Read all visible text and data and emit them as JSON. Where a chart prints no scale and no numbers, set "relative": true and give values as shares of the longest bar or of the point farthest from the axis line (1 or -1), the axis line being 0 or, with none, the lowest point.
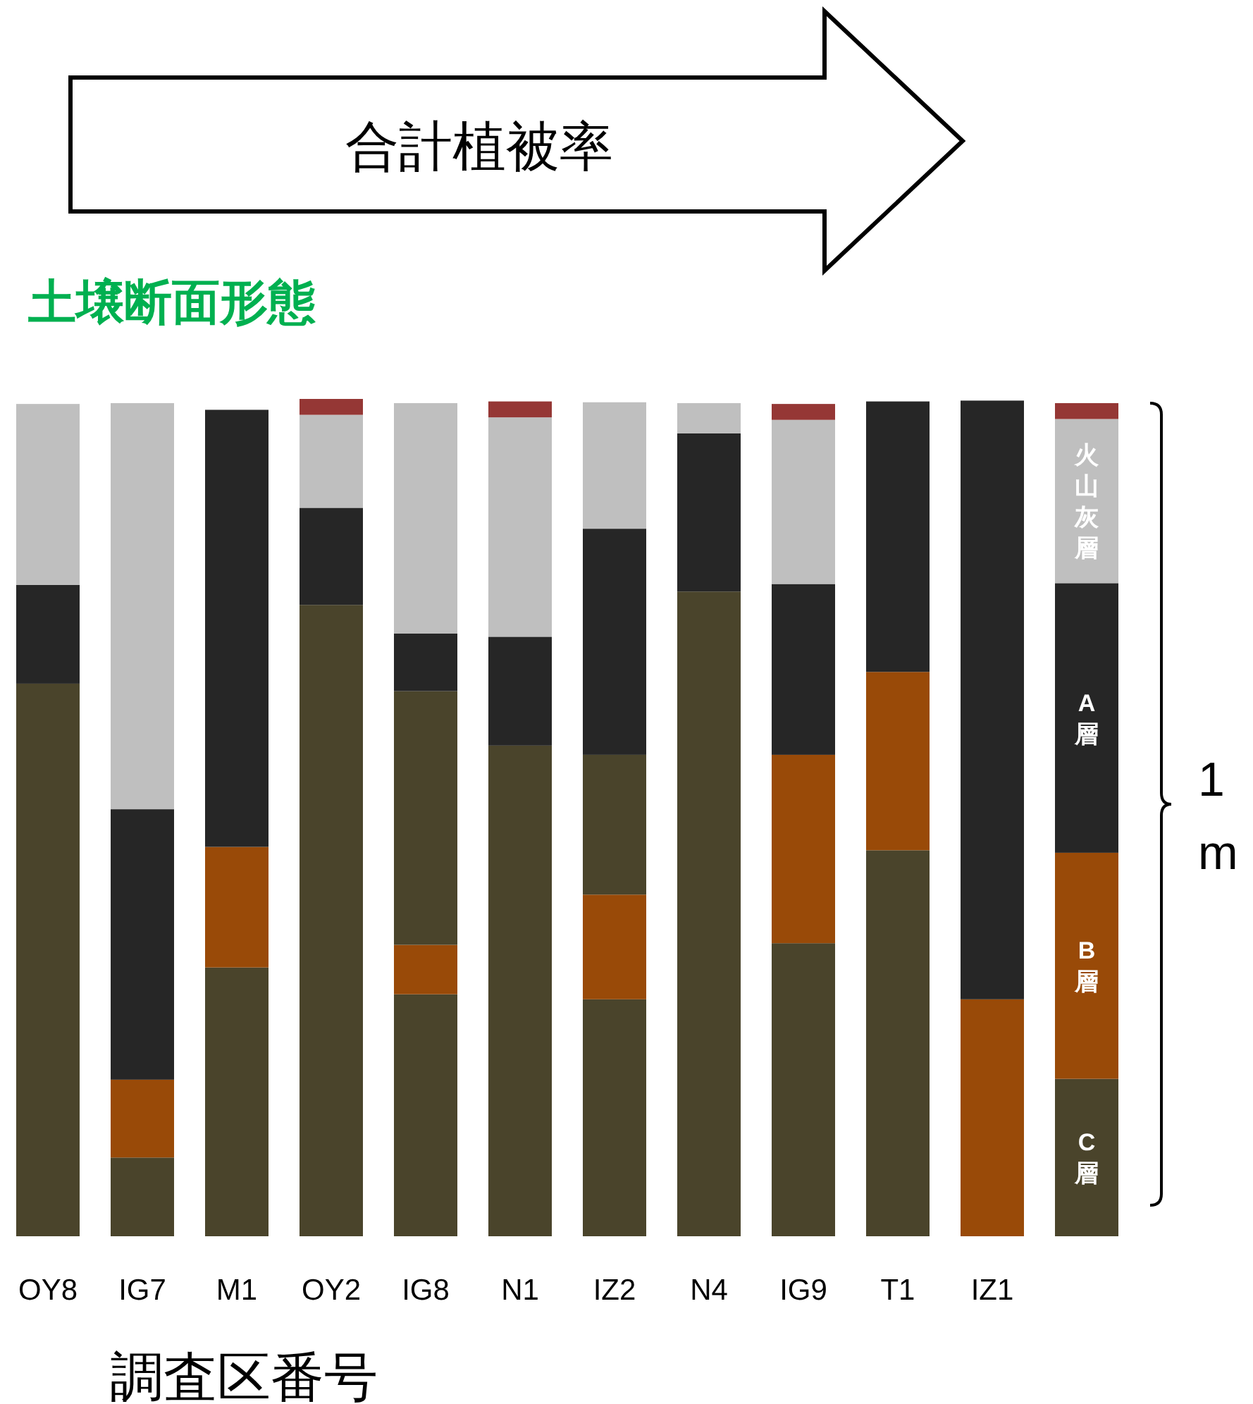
{
  "chart_data": {
    "type": "bar",
    "stacked": true,
    "relative": true,
    "title": "土壌断面形態",
    "xlabel": "調査区番号",
    "annotations": [
      "合計植被率",
      "1 m"
    ],
    "categories": [
      "OY8",
      "IG7",
      "M1",
      "OY2",
      "IG8",
      "N1",
      "IZ2",
      "N4",
      "IG9",
      "T1",
      "IZ1",
      null
    ],
    "series": [
      {
        "name": "C層",
        "color": "#4a442b",
        "values": [
          0.66,
          0.094,
          0.321,
          0.754,
          0.289,
          0.586,
          0.283,
          0.77,
          0.35,
          0.461,
          0,
          0.188
        ]
      },
      {
        "name": "B層",
        "color": "#994a08",
        "values": [
          0,
          0.093,
          0.144,
          0,
          0.059,
          0,
          0.125,
          0,
          0.225,
          0.213,
          0.283,
          0.27
        ]
      },
      {
        "color": "#4a442b",
        "values": [
          0,
          0,
          0,
          0,
          0.303,
          0,
          0.167,
          0,
          0,
          0,
          0,
          0
        ]
      },
      {
        "name": "A層",
        "color": "#262626",
        "values": [
          0.118,
          0.323,
          0.522,
          0.116,
          0.069,
          0.13,
          0.27,
          0.189,
          0.204,
          0.323,
          0.715,
          0.322
        ]
      },
      {
        "name": "火山灰層",
        "color": "#bfbfbf",
        "values": [
          0.216,
          0.485,
          0,
          0.111,
          0.275,
          0.262,
          0.151,
          0.036,
          0.196,
          0,
          0,
          0.196
        ]
      },
      {
        "color": "#953735",
        "values": [
          0,
          0,
          0,
          0.019,
          0,
          0.019,
          0,
          0,
          0.019,
          0,
          0,
          0.019
        ]
      }
    ]
  }
}
